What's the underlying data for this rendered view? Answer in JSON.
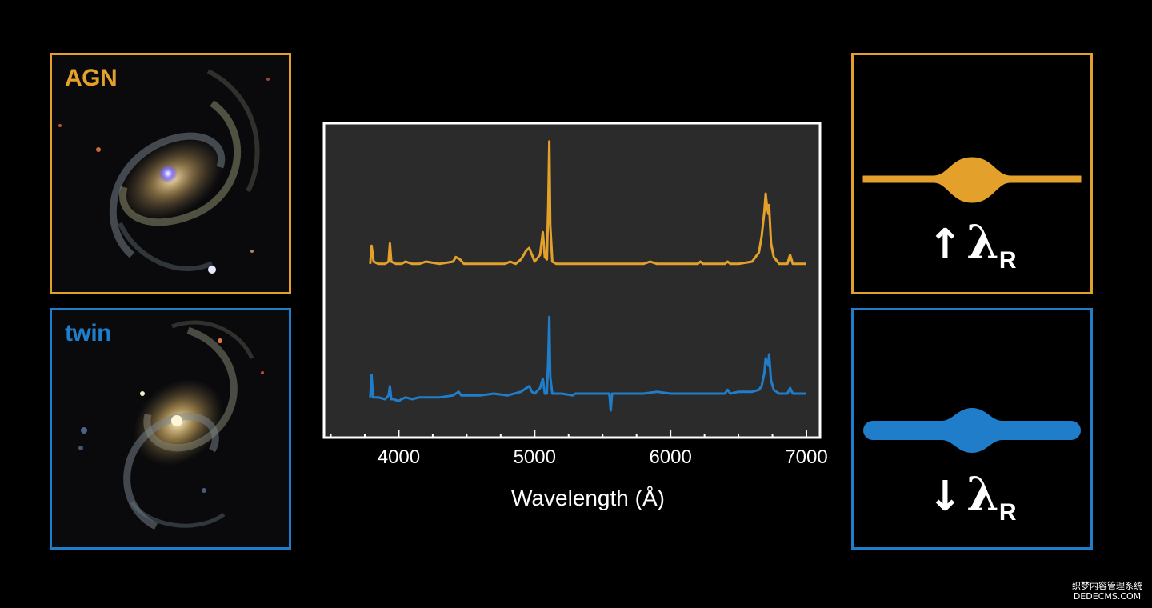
{
  "colors": {
    "agn": "#E3A12C",
    "twin": "#1F7DC9",
    "plot_bg": "#2b2b2b",
    "text": "#ffffff"
  },
  "galaxies": {
    "agn": {
      "label": "AGN"
    },
    "twin": {
      "label": "twin"
    }
  },
  "widths": {
    "agn": {
      "arrow": "↑",
      "symbol": "λ",
      "subscript": "R"
    },
    "twin": {
      "arrow": "↓",
      "symbol": "λ",
      "subscript": "R"
    }
  },
  "chart_data": {
    "type": "line",
    "title": "",
    "xlabel": "Wavelength (Å)",
    "ylabel": "",
    "xlim": [
      3450,
      7100
    ],
    "ylim": [
      0,
      1
    ],
    "xticks": [
      4000,
      5000,
      6000,
      7000
    ],
    "yticks": [],
    "grid": false,
    "legend": "none",
    "series": [
      {
        "color": "#E3A12C",
        "points": [
          [
            3790,
            0.05
          ],
          [
            3800,
            0.13
          ],
          [
            3815,
            0.06
          ],
          [
            3850,
            0.05
          ],
          [
            3900,
            0.05
          ],
          [
            3925,
            0.06
          ],
          [
            3935,
            0.14
          ],
          [
            3945,
            0.06
          ],
          [
            3980,
            0.05
          ],
          [
            4020,
            0.05
          ],
          [
            4050,
            0.06
          ],
          [
            4100,
            0.05
          ],
          [
            4150,
            0.05
          ],
          [
            4200,
            0.06
          ],
          [
            4300,
            0.05
          ],
          [
            4400,
            0.06
          ],
          [
            4420,
            0.08
          ],
          [
            4450,
            0.07
          ],
          [
            4480,
            0.05
          ],
          [
            4600,
            0.05
          ],
          [
            4700,
            0.05
          ],
          [
            4780,
            0.05
          ],
          [
            4820,
            0.06
          ],
          [
            4860,
            0.05
          ],
          [
            4900,
            0.07
          ],
          [
            4940,
            0.11
          ],
          [
            4960,
            0.12
          ],
          [
            4980,
            0.09
          ],
          [
            5000,
            0.06
          ],
          [
            5040,
            0.09
          ],
          [
            5060,
            0.19
          ],
          [
            5075,
            0.08
          ],
          [
            5090,
            0.07
          ],
          [
            5100,
            0.31
          ],
          [
            5108,
            0.59
          ],
          [
            5115,
            0.22
          ],
          [
            5130,
            0.06
          ],
          [
            5160,
            0.05
          ],
          [
            5300,
            0.05
          ],
          [
            5500,
            0.05
          ],
          [
            5700,
            0.05
          ],
          [
            5800,
            0.05
          ],
          [
            5850,
            0.06
          ],
          [
            5900,
            0.05
          ],
          [
            6100,
            0.05
          ],
          [
            6200,
            0.05
          ],
          [
            6220,
            0.06
          ],
          [
            6240,
            0.05
          ],
          [
            6400,
            0.05
          ],
          [
            6420,
            0.06
          ],
          [
            6440,
            0.05
          ],
          [
            6500,
            0.05
          ],
          [
            6600,
            0.06
          ],
          [
            6650,
            0.1
          ],
          [
            6670,
            0.17
          ],
          [
            6690,
            0.28
          ],
          [
            6700,
            0.36
          ],
          [
            6710,
            0.3
          ],
          [
            6720,
            0.27
          ],
          [
            6725,
            0.31
          ],
          [
            6740,
            0.14
          ],
          [
            6760,
            0.08
          ],
          [
            6800,
            0.05
          ],
          [
            6860,
            0.05
          ],
          [
            6880,
            0.09
          ],
          [
            6900,
            0.05
          ],
          [
            6950,
            0.05
          ],
          [
            7000,
            0.05
          ]
        ]
      },
      {
        "color": "#1F7DC9",
        "points": [
          [
            3790,
            0.01
          ],
          [
            3800,
            0.13
          ],
          [
            3810,
            0.01
          ],
          [
            3820,
            0.01
          ],
          [
            3850,
            0.01
          ],
          [
            3900,
            0.0
          ],
          [
            3925,
            0.02
          ],
          [
            3935,
            0.07
          ],
          [
            3945,
            0.0
          ],
          [
            3960,
            0.0
          ],
          [
            4000,
            -0.01
          ],
          [
            4020,
            0.0
          ],
          [
            4050,
            0.01
          ],
          [
            4100,
            0.0
          ],
          [
            4150,
            0.01
          ],
          [
            4200,
            0.01
          ],
          [
            4300,
            0.01
          ],
          [
            4400,
            0.02
          ],
          [
            4420,
            0.03
          ],
          [
            4440,
            0.04
          ],
          [
            4460,
            0.02
          ],
          [
            4500,
            0.02
          ],
          [
            4600,
            0.02
          ],
          [
            4700,
            0.03
          ],
          [
            4800,
            0.02
          ],
          [
            4900,
            0.04
          ],
          [
            4940,
            0.06
          ],
          [
            4960,
            0.07
          ],
          [
            4980,
            0.04
          ],
          [
            5000,
            0.03
          ],
          [
            5040,
            0.06
          ],
          [
            5060,
            0.11
          ],
          [
            5075,
            0.03
          ],
          [
            5090,
            0.03
          ],
          [
            5100,
            0.22
          ],
          [
            5108,
            0.44
          ],
          [
            5115,
            0.12
          ],
          [
            5130,
            0.03
          ],
          [
            5200,
            0.03
          ],
          [
            5280,
            0.02
          ],
          [
            5300,
            0.03
          ],
          [
            5400,
            0.03
          ],
          [
            5550,
            0.03
          ],
          [
            5560,
            -0.06
          ],
          [
            5570,
            0.03
          ],
          [
            5600,
            0.03
          ],
          [
            5700,
            0.03
          ],
          [
            5800,
            0.03
          ],
          [
            5900,
            0.04
          ],
          [
            6000,
            0.03
          ],
          [
            6100,
            0.03
          ],
          [
            6200,
            0.03
          ],
          [
            6300,
            0.03
          ],
          [
            6400,
            0.03
          ],
          [
            6420,
            0.05
          ],
          [
            6440,
            0.03
          ],
          [
            6500,
            0.04
          ],
          [
            6600,
            0.04
          ],
          [
            6650,
            0.05
          ],
          [
            6670,
            0.07
          ],
          [
            6690,
            0.14
          ],
          [
            6700,
            0.22
          ],
          [
            6710,
            0.2
          ],
          [
            6720,
            0.18
          ],
          [
            6725,
            0.24
          ],
          [
            6740,
            0.1
          ],
          [
            6760,
            0.05
          ],
          [
            6800,
            0.03
          ],
          [
            6860,
            0.03
          ],
          [
            6880,
            0.06
          ],
          [
            6900,
            0.03
          ],
          [
            6950,
            0.03
          ],
          [
            7000,
            0.03
          ]
        ]
      }
    ]
  },
  "watermark": {
    "line1": "织梦内容管理系统",
    "line2": "DEDECMS.COM"
  }
}
